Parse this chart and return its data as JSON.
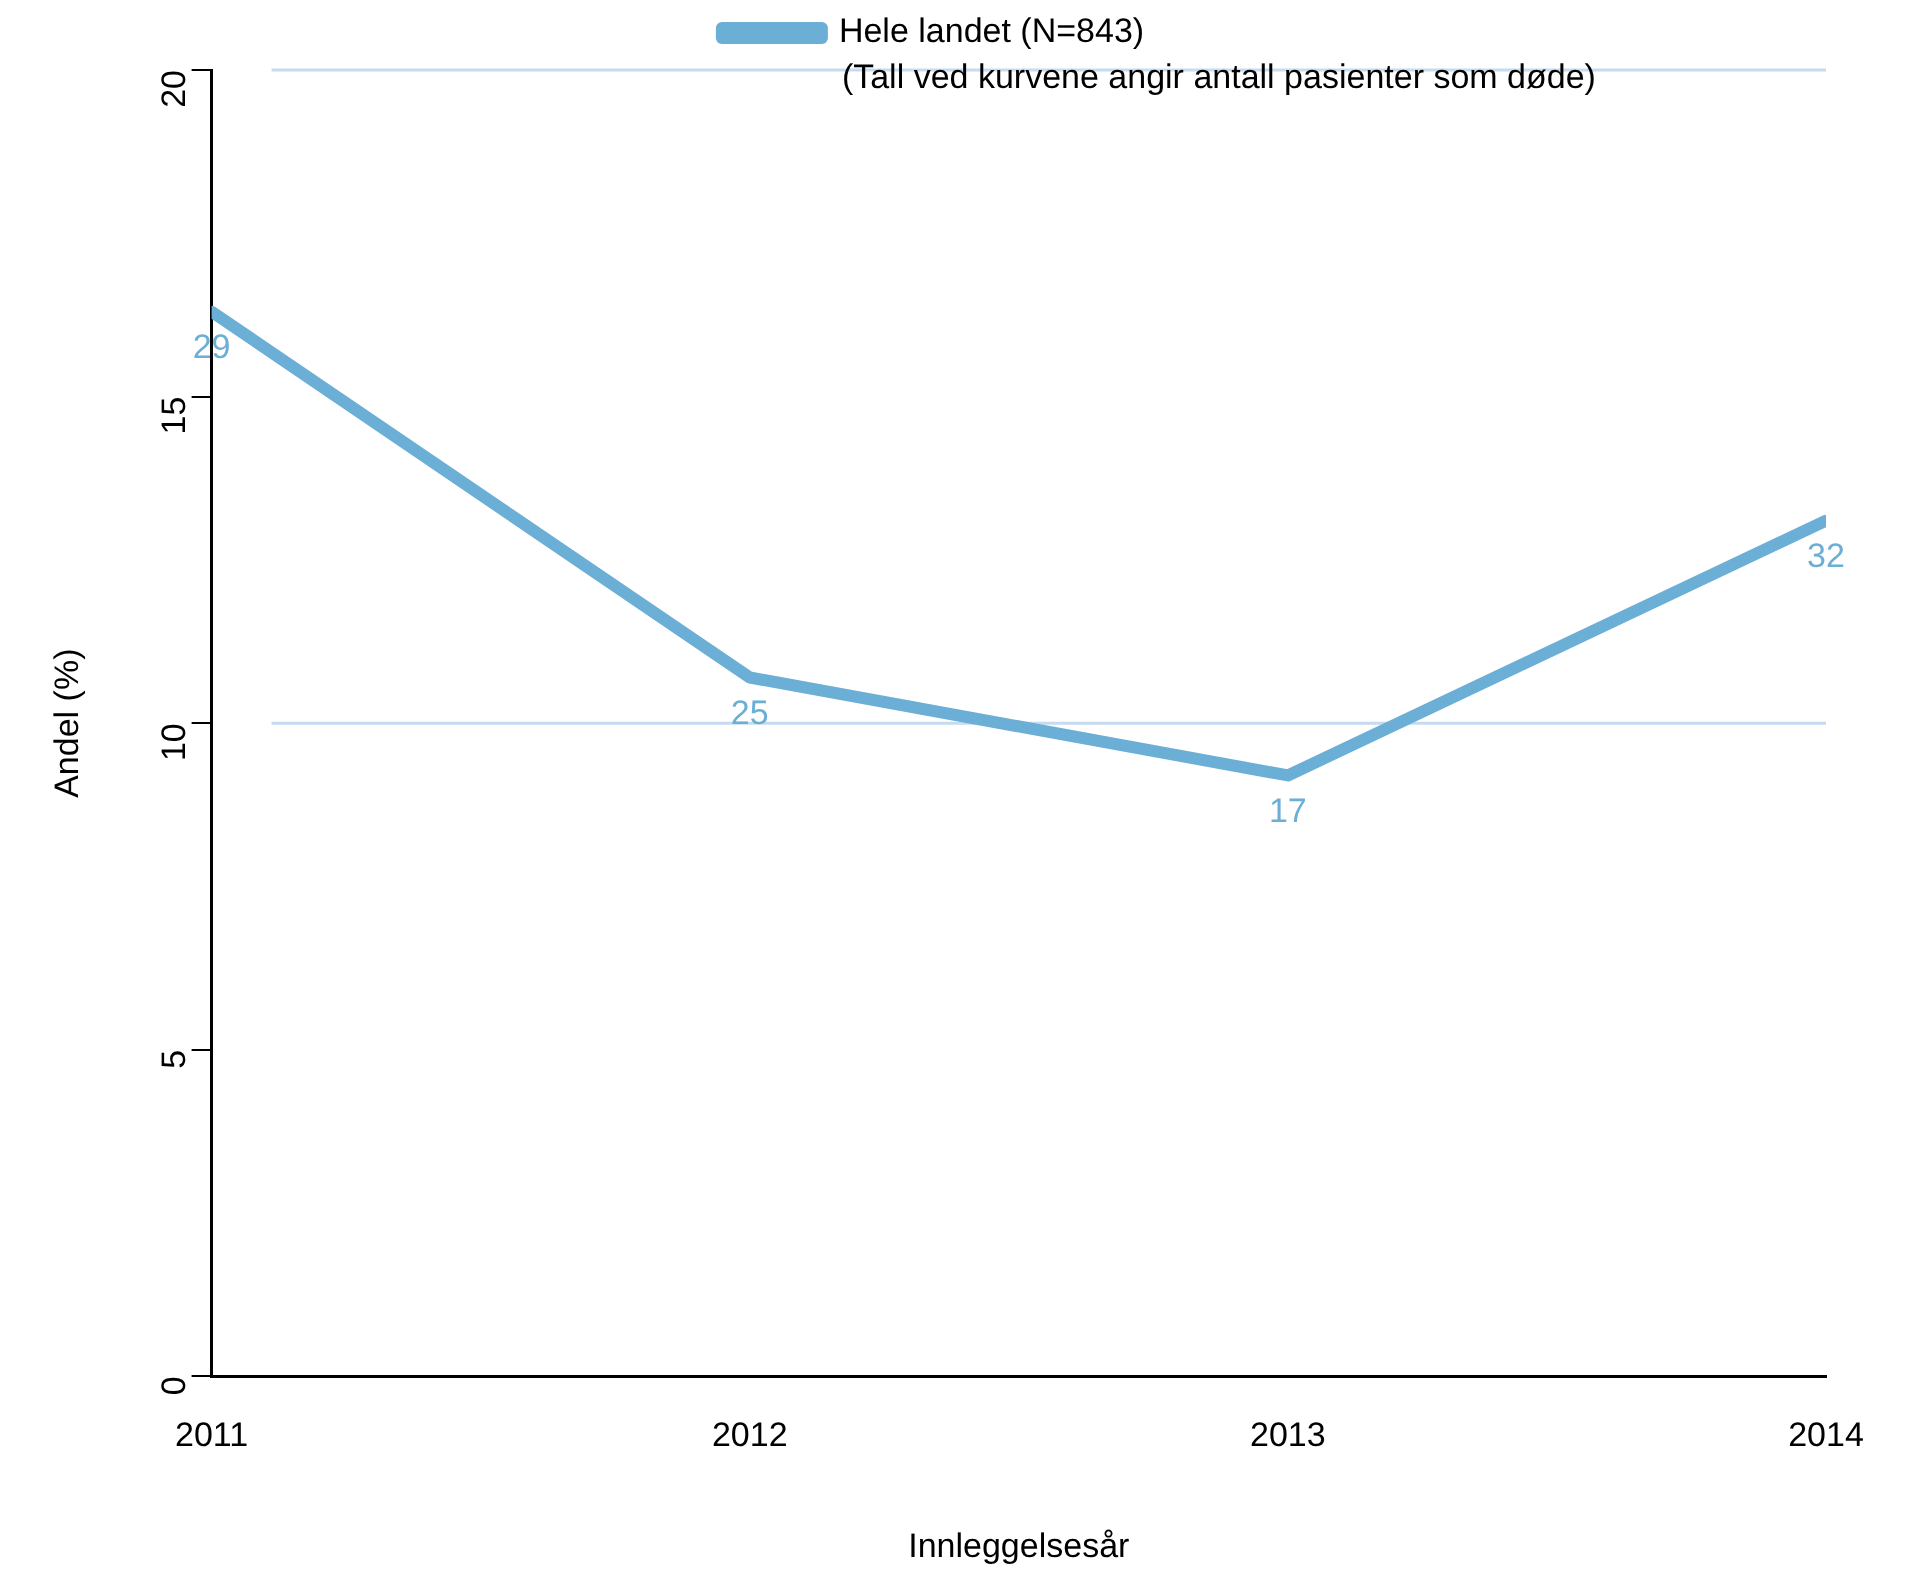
{
  "chart_data": {
    "type": "line",
    "xlabel": "Innleggelsesår",
    "ylabel": "Andel (%)",
    "x": [
      2011,
      2012,
      2013,
      2014
    ],
    "series": [
      {
        "name": "Hele landet (N=843)",
        "color": "#6baed6",
        "values": [
          16.3,
          10.7,
          9.2,
          13.1
        ]
      }
    ],
    "xlim": [
      2011,
      2014
    ],
    "xticks": [
      2011,
      2012,
      2013,
      2014
    ],
    "ylim": [
      0,
      20
    ],
    "yticks": [
      0,
      5,
      10,
      15,
      20
    ],
    "ref_lines": [
      {
        "axis": "y",
        "value": 10,
        "color": "#c6dbef"
      },
      {
        "axis": "y",
        "value": 20,
        "color": "#c6dbef"
      }
    ],
    "annotations": [
      "(Tall ved kurvene angir antall pasienter som døde)",
      {
        "text": "29",
        "x": 2011,
        "y": 16.3
      },
      {
        "text": "25",
        "x": 2012,
        "y": 10.7
      },
      {
        "text": "17",
        "x": 2013,
        "y": 9.2
      },
      {
        "text": "32",
        "x": 2014,
        "y": 13.1
      }
    ],
    "legend": "top",
    "grid": false,
    "marker": "none",
    "line_style": "solid"
  }
}
